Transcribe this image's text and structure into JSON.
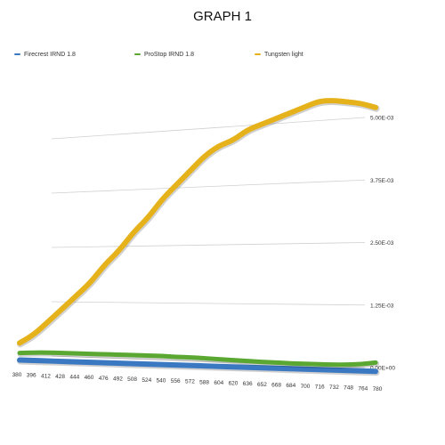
{
  "colors": {
    "blue": "#3a78c2",
    "green": "#5aa832",
    "yellow": "#e5b21b",
    "grid": "#d0d0d0"
  },
  "chart_data": {
    "type": "line",
    "title": "GRAPH 1",
    "xlabel": "",
    "ylabel": "",
    "legend_position": "top",
    "grid": true,
    "x": [
      380,
      396,
      412,
      428,
      444,
      460,
      476,
      492,
      508,
      524,
      540,
      556,
      572,
      588,
      604,
      620,
      636,
      652,
      668,
      684,
      700,
      716,
      732,
      748,
      764,
      780
    ],
    "x_tick_labels": [
      "380",
      "396",
      "412",
      "428",
      "444",
      "460",
      "476",
      "492",
      "508",
      "524",
      "540",
      "556",
      "572",
      "588",
      "604",
      "620",
      "636",
      "652",
      "668",
      "684",
      "700",
      "716",
      "732",
      "748",
      "764",
      "780"
    ],
    "y_tick_labels": [
      "0.00E+00",
      "1.25E-03",
      "2.50E-03",
      "3.75E-03",
      "5.00E-03"
    ],
    "ylim": [
      0,
      0.005
    ],
    "series": [
      {
        "name": "Firecrest IRND 1.8",
        "color": "#3a78c2",
        "values": [
          3e-05,
          3e-05,
          3e-05,
          3e-05,
          3e-05,
          3e-05,
          3e-05,
          3e-05,
          3e-05,
          3e-05,
          3e-05,
          3e-05,
          3e-05,
          3e-05,
          3e-05,
          3e-05,
          3e-05,
          3e-05,
          3e-05,
          3e-05,
          3e-05,
          3e-05,
          3e-05,
          3e-05,
          3e-05,
          3e-05
        ]
      },
      {
        "name": "ProStop IRND 1.8",
        "color": "#5aa832",
        "values": [
          7e-05,
          9e-05,
          0.0001,
          0.0001,
          0.0001,
          0.0001,
          0.0001,
          0.0001,
          0.0001,
          0.0001,
          0.0001,
          9e-05,
          9e-05,
          8e-05,
          7e-05,
          6e-05,
          5e-05,
          4e-05,
          4e-05,
          3e-05,
          3e-05,
          3e-05,
          3e-05,
          4e-05,
          6e-05,
          0.0001
        ]
      },
      {
        "name": "Tungsten light",
        "color": "#e5b21b",
        "values": [
          0.0003,
          0.0005,
          0.0008,
          0.0011,
          0.0014,
          0.0017,
          0.0021,
          0.0024,
          0.0028,
          0.0031,
          0.0035,
          0.0038,
          0.0041,
          0.0044,
          0.0046,
          0.0047,
          0.0049,
          0.005,
          0.0051,
          0.0052,
          0.0053,
          0.0054,
          0.0054,
          0.00535,
          0.0053,
          0.0052
        ]
      }
    ]
  }
}
